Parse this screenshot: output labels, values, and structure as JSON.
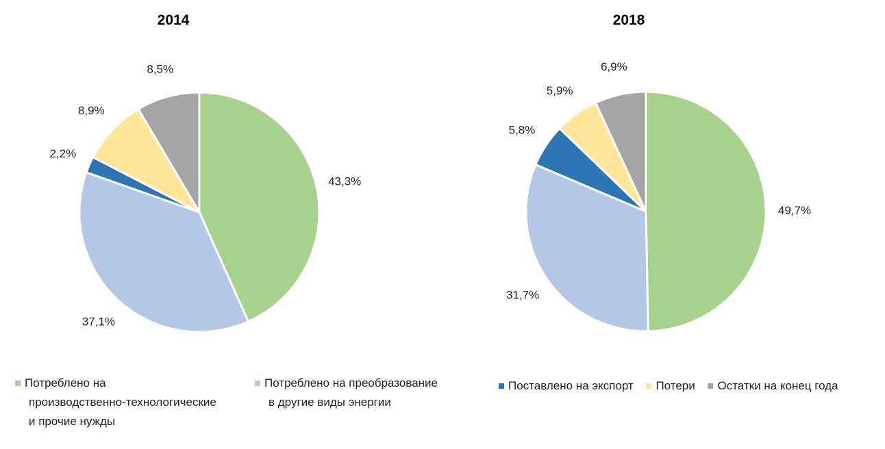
{
  "chart_data": [
    {
      "type": "pie",
      "title": "2014",
      "categories": [
        "Потреблено на производственно-технологические и прочие нужды",
        "Потреблено на преобразование в другие виды энергии",
        "Поставлено на экспорт",
        "Потери",
        "Остатки на конец года"
      ],
      "values": [
        43.3,
        37.1,
        2.2,
        8.9,
        8.5
      ],
      "labels": [
        "43,3%",
        "37,1%",
        "2,2%",
        "8,9%",
        "8,5%"
      ]
    },
    {
      "type": "pie",
      "title": "2018",
      "categories": [
        "Потреблено на производственно-технологические и прочие нужды",
        "Потреблено на преобразование в другие виды энергии",
        "Поставлено на экспорт",
        "Потери",
        "Остатки на конец года"
      ],
      "values": [
        49.7,
        31.7,
        5.8,
        5.9,
        6.9
      ],
      "labels": [
        "49,7%",
        "31,7%",
        "5,8%",
        "5,9%",
        "6,9%"
      ]
    }
  ],
  "colors": [
    "#A9D18E",
    "#B4C7E7",
    "#2E75B6",
    "#FFE699",
    "#A5A5A5"
  ],
  "legend": {
    "left": [
      {
        "lines": [
          "Потреблено на",
          "производственно-технологические",
          "и прочие нужды"
        ]
      },
      {
        "lines": [
          "Потреблено на преобразование",
          "в другие виды энергии"
        ]
      }
    ],
    "right": [
      "Поставлено на экспорт",
      "Потери",
      "Остатки на конец года"
    ]
  }
}
